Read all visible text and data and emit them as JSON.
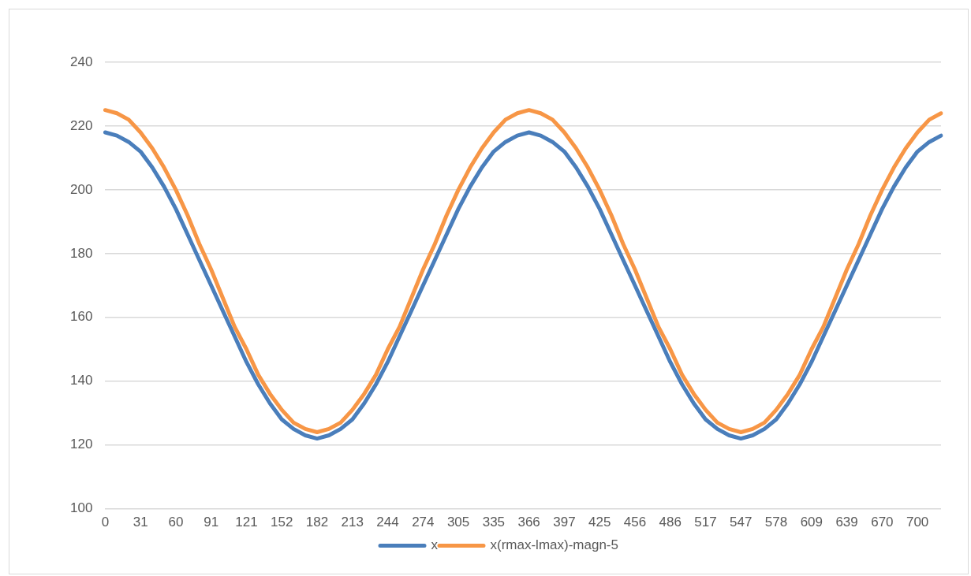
{
  "chart_data": {
    "type": "line",
    "categories": [
      "0",
      null,
      null,
      "31",
      null,
      null,
      "60",
      null,
      null,
      "91",
      null,
      null,
      "121",
      null,
      null,
      "152",
      null,
      null,
      "182",
      null,
      null,
      "213",
      null,
      null,
      "244",
      null,
      null,
      "274",
      null,
      null,
      "305",
      null,
      null,
      "335",
      null,
      null,
      "366",
      null,
      null,
      "397",
      null,
      null,
      "425",
      null,
      null,
      "456",
      null,
      null,
      "486",
      null,
      null,
      "517",
      null,
      null,
      "547",
      null,
      null,
      "578",
      null,
      null,
      "609",
      null,
      null,
      "639",
      null,
      null,
      "670",
      null,
      null,
      "700",
      null,
      null
    ],
    "series": [
      {
        "name": "x",
        "color": "#4a7ebb",
        "values": [
          218,
          217,
          215,
          212,
          207,
          201,
          194,
          186,
          178,
          170,
          162,
          154,
          146,
          139,
          133,
          128,
          125,
          123,
          122,
          123,
          125,
          128,
          133,
          139,
          146,
          154,
          162,
          170,
          178,
          186,
          194,
          201,
          207,
          212,
          215,
          217,
          218,
          217,
          215,
          212,
          207,
          201,
          194,
          186,
          178,
          170,
          162,
          154,
          146,
          139,
          133,
          128,
          125,
          123,
          122,
          123,
          125,
          128,
          133,
          139,
          146,
          154,
          162,
          170,
          178,
          186,
          194,
          201,
          207,
          212,
          215,
          217
        ]
      },
      {
        "name": "x(rmax-lmax)-magn-5",
        "color": "#f79646",
        "values": [
          225,
          224,
          222,
          218,
          213,
          207,
          200,
          192,
          183,
          175,
          166,
          157,
          150,
          142,
          136,
          131,
          127,
          125,
          124,
          125,
          127,
          131,
          136,
          142,
          150,
          157,
          166,
          175,
          183,
          192,
          200,
          207,
          213,
          218,
          222,
          224,
          225,
          224,
          222,
          218,
          213,
          207,
          200,
          192,
          183,
          175,
          166,
          157,
          150,
          142,
          136,
          131,
          127,
          125,
          124,
          125,
          127,
          131,
          136,
          142,
          150,
          157,
          166,
          175,
          183,
          192,
          200,
          207,
          213,
          218,
          222,
          224
        ]
      }
    ],
    "ylim": [
      100,
      240
    ],
    "yticks": [
      100,
      120,
      140,
      160,
      180,
      200,
      220,
      240
    ],
    "grid": "y",
    "legend": "bottom",
    "marker": "none",
    "line_style": "solid"
  }
}
